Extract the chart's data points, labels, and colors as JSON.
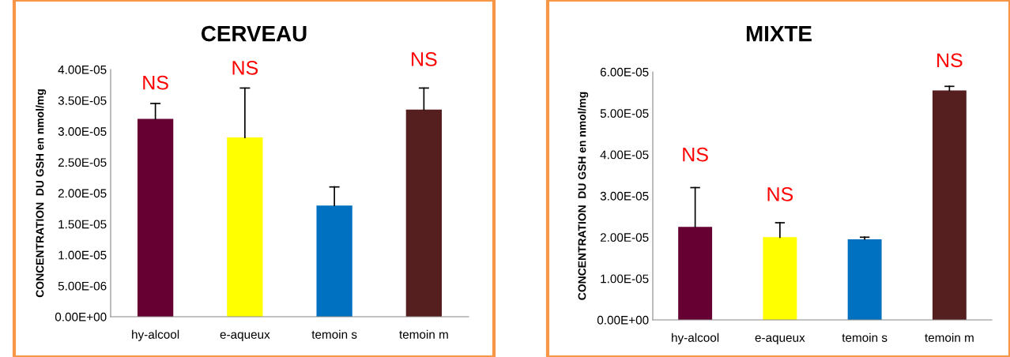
{
  "chart_data": [
    {
      "type": "bar",
      "title": "CERVEAU",
      "ylabel": "CONCENTRATION  DU GSH en nmol/mg",
      "categories": [
        "hy-alcool",
        "e-aqueux",
        "temoin s",
        "temoin m"
      ],
      "values": [
        3.2e-05,
        2.9e-05,
        1.8e-05,
        3.35e-05
      ],
      "errors": [
        [
          3.2e-05,
          3.45e-05
        ],
        [
          2.9e-05,
          3.7e-05
        ],
        [
          1.8e-05,
          2.1e-05
        ],
        [
          3.35e-05,
          3.7e-05
        ]
      ],
      "colors": [
        "#660033",
        "#ffff00",
        "#0070c0",
        "#561f1f"
      ],
      "ylim": [
        0,
        4e-05
      ],
      "yticks": [
        {
          "value": 0,
          "label": "0.00E+00"
        },
        {
          "value": 5e-06,
          "label": "5.00E-06"
        },
        {
          "value": 1e-05,
          "label": "1.00E-05"
        },
        {
          "value": 1.5e-05,
          "label": "1.50E-05"
        },
        {
          "value": 2e-05,
          "label": "2.00E-05"
        },
        {
          "value": 2.5e-05,
          "label": "2.50E-05"
        },
        {
          "value": 3e-05,
          "label": "3.00E-05"
        },
        {
          "value": 3.5e-05,
          "label": "3.50E-05"
        },
        {
          "value": 4e-05,
          "label": "4.00E-05"
        }
      ],
      "annotations": [
        "NS",
        "NS",
        "NS"
      ]
    },
    {
      "type": "bar",
      "title": "MIXTE",
      "ylabel": "CONCENTRATION  DU GSH en nmol/mg",
      "categories": [
        "hy-alcool",
        "e-aqueux",
        "temoin s",
        "temoin m"
      ],
      "values": [
        2.25e-05,
        2e-05,
        1.95e-05,
        5.55e-05
      ],
      "errors": [
        [
          2.25e-05,
          3.2e-05
        ],
        [
          2e-05,
          2.35e-05
        ],
        [
          1.95e-05,
          2e-05
        ],
        [
          5.55e-05,
          5.65e-05
        ]
      ],
      "colors": [
        "#660033",
        "#ffff00",
        "#0070c0",
        "#561f1f"
      ],
      "ylim": [
        0,
        6e-05
      ],
      "yticks": [
        {
          "value": 0,
          "label": "0.00E+00"
        },
        {
          "value": 1e-05,
          "label": "1.00E-05"
        },
        {
          "value": 2e-05,
          "label": "2.00E-05"
        },
        {
          "value": 3e-05,
          "label": "3.00E-05"
        },
        {
          "value": 4e-05,
          "label": "4.00E-05"
        },
        {
          "value": 5e-05,
          "label": "5.00E-05"
        },
        {
          "value": 6e-05,
          "label": "6.00E-05"
        }
      ],
      "annotations": [
        "NS",
        "NS",
        "NS"
      ]
    }
  ]
}
